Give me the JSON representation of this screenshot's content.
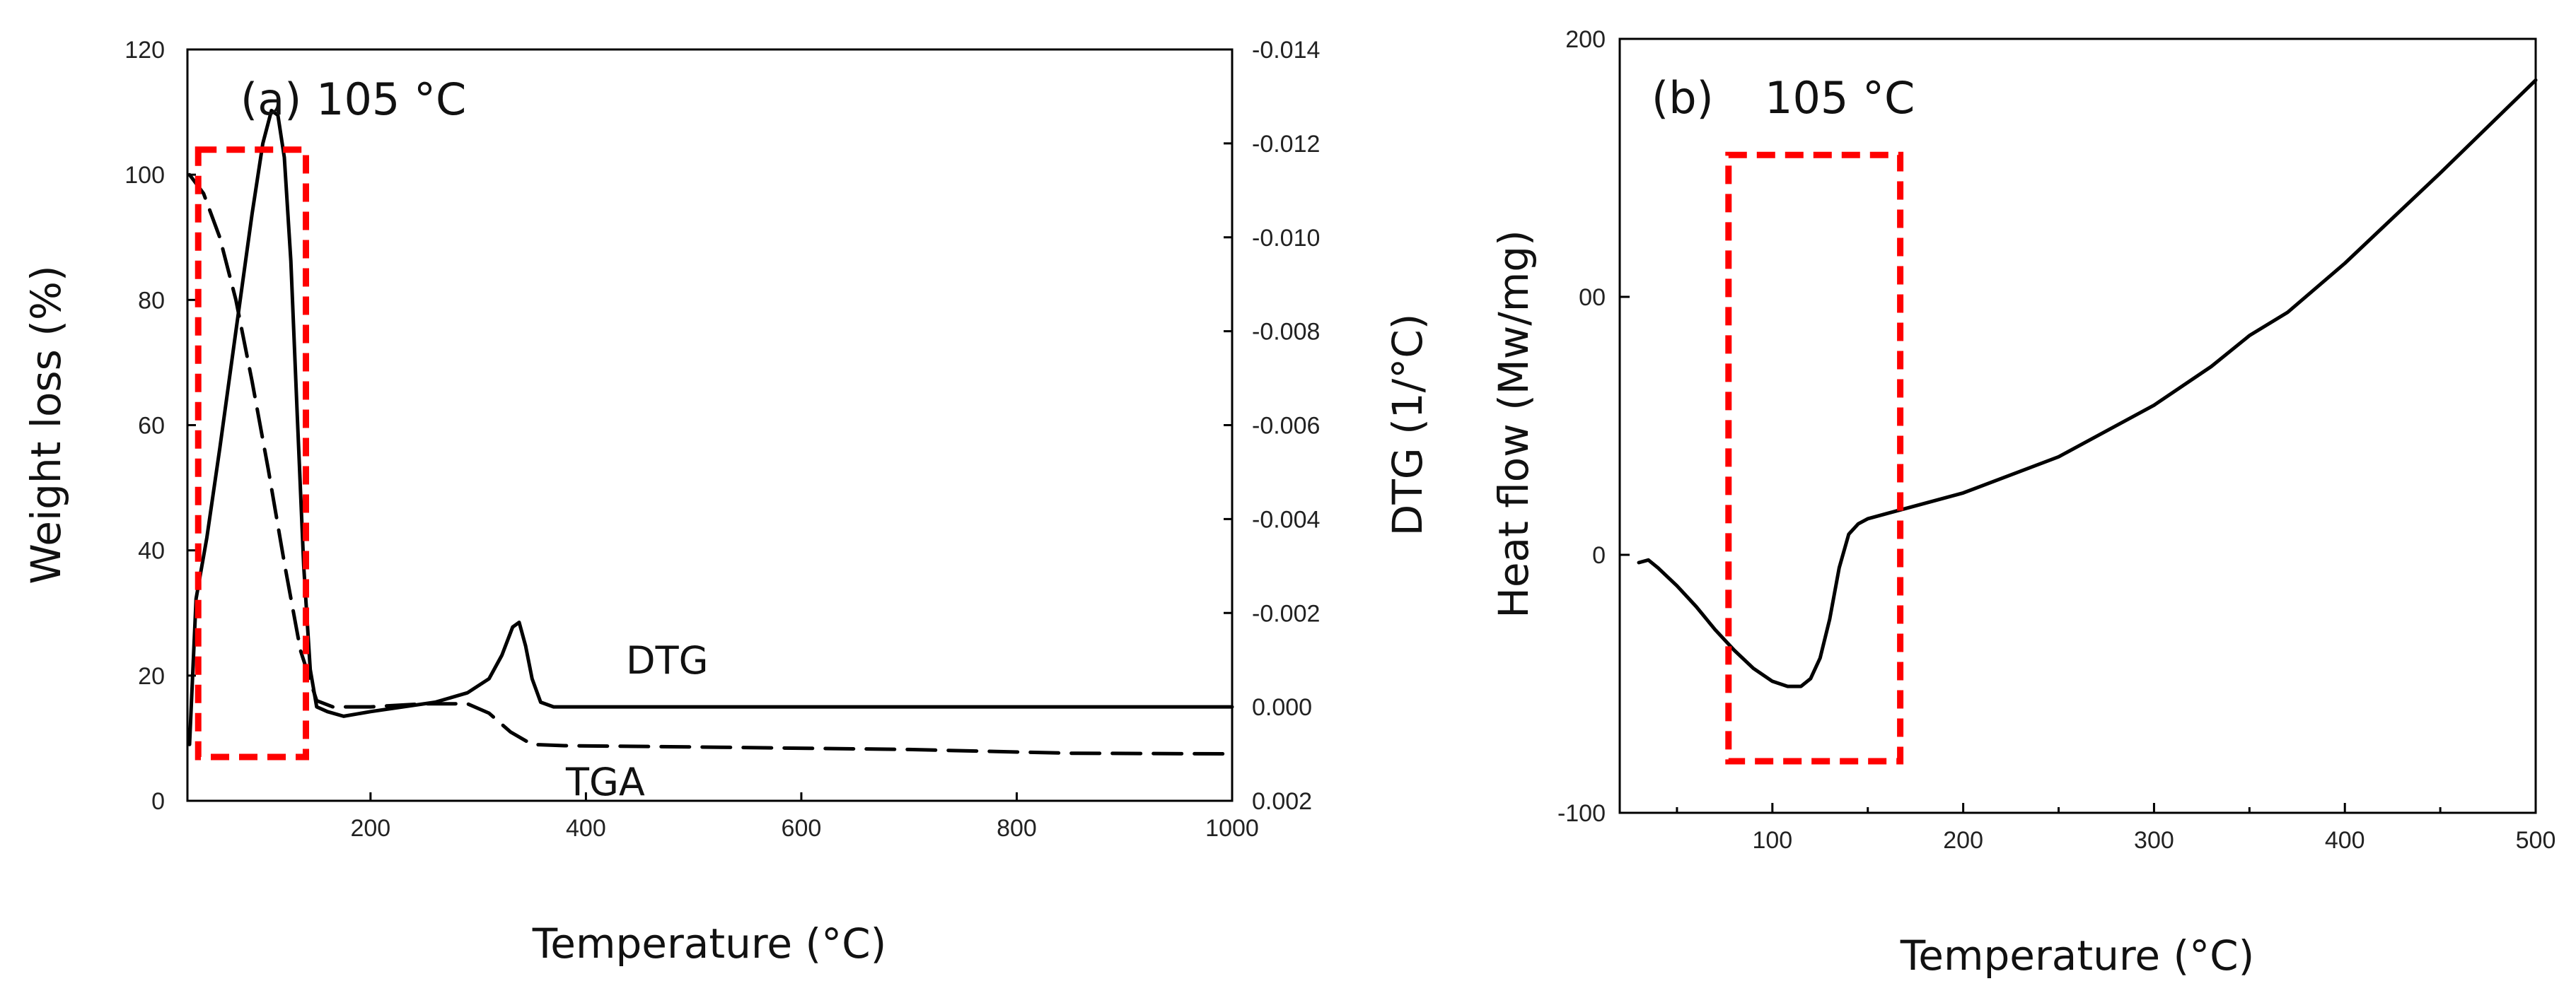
{
  "chart_data": [
    {
      "type": "line",
      "panel_label": "(a)",
      "title": "105 °C",
      "xlabel": "Temperature (°C)",
      "ylabel": "Weight loss  (%)",
      "ylabel_right": "DTG (1/°C)",
      "xlim": [
        30,
        1000
      ],
      "ylim": [
        0,
        120
      ],
      "ylim_right": [
        0.002,
        -0.014
      ],
      "xticks": [
        "200",
        "400",
        "600",
        "800",
        "1000"
      ],
      "yticks": [
        "0",
        "20",
        "40",
        "60",
        "80",
        "100",
        "120"
      ],
      "yticks_right": [
        "0.002",
        "0.000",
        "-0.002",
        "-0.004",
        "-0.006",
        "-0.008",
        "-0.010",
        "-0.012",
        "-0.014"
      ],
      "grid": false,
      "highlight_region": {
        "x": [
          40,
          140
        ],
        "y": [
          7,
          104
        ]
      },
      "series": [
        {
          "name": "DTG",
          "style": "solid",
          "axis": "right",
          "x": [
            32,
            38,
            48,
            60,
            75,
            90,
            100,
            108,
            114,
            120,
            126,
            132,
            138,
            144,
            150,
            160,
            175,
            200,
            230,
            260,
            290,
            310,
            322,
            332,
            338,
            344,
            350,
            358,
            370,
            400,
            500,
            600,
            700,
            800,
            900,
            1000
          ],
          "y": [
            0.0008,
            -0.0023,
            -0.0036,
            -0.0055,
            -0.008,
            -0.0105,
            -0.012,
            -0.0127,
            -0.0126,
            -0.0117,
            -0.0095,
            -0.0062,
            -0.003,
            -0.0008,
            0.0,
            0.0001,
            0.0002,
            0.0001,
            0.0,
            -0.0001,
            -0.0003,
            -0.0006,
            -0.0011,
            -0.0017,
            -0.0018,
            -0.0013,
            -0.0006,
            -0.0001,
            0.0,
            0.0,
            0.0,
            0.0,
            0.0,
            0.0,
            0.0,
            0.0
          ]
        },
        {
          "name": "TGA",
          "style": "dashed",
          "axis": "left",
          "x": [
            32,
            45,
            60,
            75,
            90,
            105,
            120,
            135,
            150,
            165,
            200,
            250,
            290,
            310,
            330,
            350,
            380,
            500,
            700,
            850,
            1000
          ],
          "y": [
            100,
            97,
            90,
            80,
            67,
            53,
            38,
            24,
            16,
            15,
            15,
            15.5,
            15.5,
            14,
            11,
            9,
            8.8,
            8.6,
            8.2,
            7.6,
            7.5
          ]
        }
      ],
      "annotations": [
        "DTG",
        "TGA"
      ]
    },
    {
      "type": "line",
      "panel_label": "(b)",
      "title": "105 °C",
      "xlabel": "Temperature (°C)",
      "ylabel": "Heat flow (Mw/mg)",
      "xlim": [
        20,
        500
      ],
      "ylim": [
        -100,
        200
      ],
      "xticks": [
        "100",
        "200",
        "300",
        "400",
        "500"
      ],
      "yticks": [
        "-100",
        "0",
        "00",
        "200"
      ],
      "grid": false,
      "highlight_region": {
        "x": [
          77,
          167
        ],
        "y": [
          -80,
          155
        ]
      },
      "series": [
        {
          "name": "Heat flow",
          "style": "solid",
          "x": [
            30,
            35,
            40,
            50,
            60,
            70,
            80,
            90,
            100,
            108,
            115,
            120,
            125,
            130,
            135,
            140,
            145,
            150,
            160,
            170,
            200,
            250,
            300,
            330,
            350,
            370,
            400,
            450,
            500
          ],
          "y": [
            -3,
            -2,
            -5,
            -12,
            -20,
            -29,
            -37,
            -44,
            -49,
            -51,
            -51,
            -48,
            -40,
            -25,
            -5,
            8,
            12,
            14,
            16,
            18,
            24,
            38,
            58,
            73,
            85,
            94,
            113,
            148,
            184
          ]
        }
      ]
    }
  ]
}
